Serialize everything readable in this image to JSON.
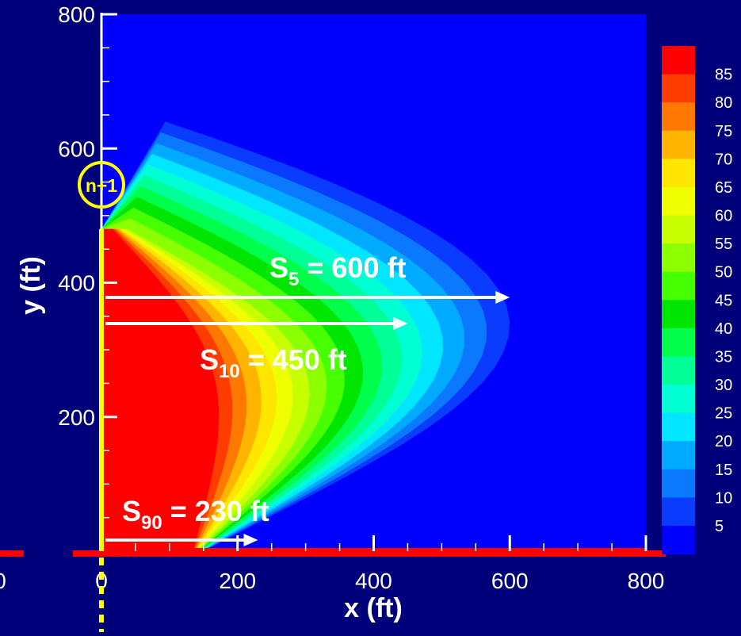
{
  "chart_data": {
    "type": "heatmap",
    "title": "",
    "xlabel": "x (ft)",
    "ylabel": "y (ft)",
    "xlim": [
      0,
      800
    ],
    "ylim": [
      0,
      800
    ],
    "x_ticks": [
      "0",
      "200",
      "400",
      "600",
      "800"
    ],
    "y_ticks": [
      "200",
      "400",
      "600",
      "800"
    ],
    "left_edge_tick": "0",
    "grid": false,
    "legend_position": "right",
    "colorbar": {
      "levels": [
        85,
        80,
        75,
        70,
        65,
        60,
        55,
        50,
        45,
        40,
        35,
        30,
        25,
        20,
        15,
        10,
        5
      ],
      "labels": [
        "85",
        "80",
        "75",
        "70",
        "65",
        "60",
        "55",
        "50",
        "45",
        "40",
        "35",
        "30",
        "25",
        "20",
        "15",
        "10",
        "5"
      ]
    },
    "contour_reach_ft": [
      {
        "level": 5,
        "x_max": 600
      },
      {
        "level": 10,
        "x_max": 450
      },
      {
        "level": 90,
        "x_max": 230
      }
    ],
    "source_segment": {
      "x": 0,
      "y_from": 0,
      "y_to": 480
    },
    "annotations": [
      {
        "id": "s5",
        "sub": "5",
        "rest": " = 600 ft",
        "x": 600,
        "y": 375
      },
      {
        "id": "s10",
        "sub": "10",
        "rest": " = 450 ft",
        "x": 430,
        "y": 340
      },
      {
        "id": "s90",
        "sub": "90",
        "rest": " = 230 ft",
        "x": 200,
        "y": 10
      }
    ],
    "circle_label": "n+1",
    "annotation_prefix": "S"
  },
  "colors": {
    "background": "#00007a",
    "plot_floor": "#0000ff",
    "axis_line": "#ffffff",
    "source_line": "#ffff00",
    "baseline": "#ff0000",
    "arrow": "#ffffff",
    "circle": "#ffff00",
    "ramp": [
      "#0000ff",
      "#0a3cff",
      "#0a78ff",
      "#00aaff",
      "#00e6ff",
      "#00ffd2",
      "#00ff96",
      "#00ff4b",
      "#00e600",
      "#46ff00",
      "#8cff00",
      "#c8ff00",
      "#f0ff00",
      "#ffe600",
      "#ffb400",
      "#ff7800",
      "#ff3c00",
      "#ff0000"
    ]
  }
}
